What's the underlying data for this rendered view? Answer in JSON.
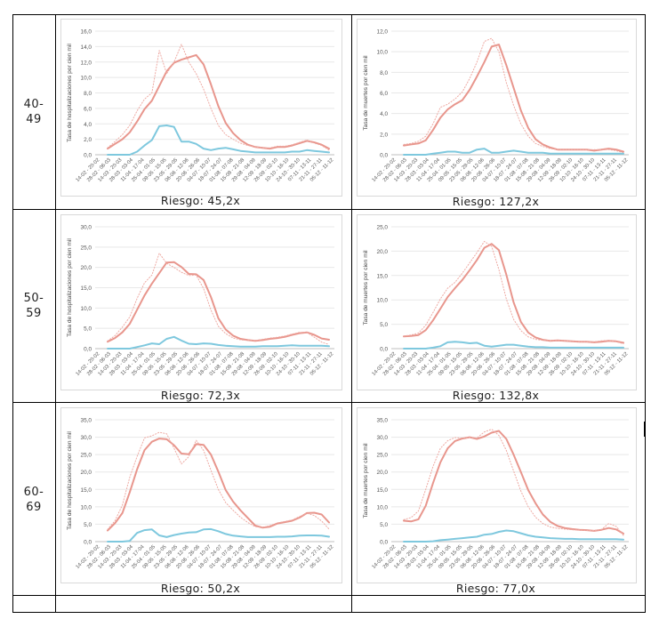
{
  "x_ticks": [
    "14-02 - 20-02",
    "28-02 - 06-03",
    "14-03 - 20-03",
    "28-03 - 03-04",
    "11-04 - 17-04",
    "25-04 - 01-05",
    "09-05 - 15-05",
    "23-05 - 29-05",
    "06-06 - 12-06",
    "20-06 - 26-06",
    "04-07 - 10-07",
    "18-07 - 24-07",
    "01-08 - 07-08",
    "15-08 - 21-08",
    "29-08 - 04-09",
    "12-09 - 18-09",
    "26-09 - 02-10",
    "10-10 - 16-10",
    "24-10 - 30-10",
    "07-11 - 13-11",
    "21-11 - 27-11",
    "05-12 - 11-12"
  ],
  "colors": {
    "main": "#e8968d",
    "dotted": "#eeaaa3",
    "blue": "#7ec8de",
    "grid": "#e8e8e8",
    "axis": "#bfbfbf"
  },
  "rows": [
    {
      "age": "40-\n49"
    },
    {
      "age": "50-\n59"
    },
    {
      "age": "60-\n69"
    }
  ],
  "chart_data": [
    {
      "type": "line",
      "ylabel": "Tasa de hospitalizaciones  por cien mil",
      "ylim": [
        0,
        16
      ],
      "y_ticks": [
        "0,0",
        "2,0",
        "4,0",
        "6,0",
        "8,0",
        "10,0",
        "12,0",
        "14,0",
        "16,0"
      ],
      "caption": "Riesgo: 45,2x",
      "series": [
        {
          "style": "solid",
          "color": "#e8968d",
          "values": [
            0.8,
            1.4,
            2.0,
            2.9,
            4.3,
            5.9,
            7.0,
            8.9,
            10.8,
            11.9,
            12.3,
            12.6,
            12.9,
            11.7,
            9.1,
            6.3,
            4.1,
            2.8,
            1.9,
            1.3,
            1.0,
            0.9,
            0.8,
            1.0,
            1.0,
            1.2,
            1.5,
            1.8,
            1.6,
            1.3,
            0.8
          ]
        },
        {
          "style": "dotted",
          "color": "#eeaaa3",
          "values": [
            0.9,
            1.7,
            2.6,
            3.8,
            5.7,
            7.2,
            8.0,
            13.5,
            10.5,
            12.0,
            14.3,
            12.0,
            10.5,
            8.5,
            6.0,
            3.8,
            2.6,
            2.0,
            1.5,
            1.2,
            1.0,
            0.9,
            0.9,
            1.1,
            1.1,
            1.3,
            1.6,
            1.9,
            1.5,
            1.2,
            0.6
          ]
        },
        {
          "style": "solid",
          "color": "#7ec8de",
          "values": [
            0,
            0,
            0,
            0,
            0.4,
            1.2,
            1.9,
            3.7,
            3.8,
            3.6,
            1.7,
            1.7,
            1.4,
            0.8,
            0.6,
            0.8,
            0.9,
            0.7,
            0.5,
            0.4,
            0.3,
            0.3,
            0.3,
            0.3,
            0.3,
            0.4,
            0.4,
            0.6,
            0.5,
            0.4,
            0.3
          ]
        }
      ]
    },
    {
      "type": "line",
      "ylabel": "Tasa de muertes  por cien mil",
      "ylim": [
        0,
        12
      ],
      "y_ticks": [
        "0,0",
        "2,0",
        "4,0",
        "6,0",
        "8,0",
        "10,0",
        "12,0"
      ],
      "caption": "Riesgo: 127,2x",
      "series": [
        {
          "style": "solid",
          "color": "#e8968d",
          "values": [
            0.9,
            1.0,
            1.1,
            1.4,
            2.4,
            3.6,
            4.4,
            4.9,
            5.3,
            6.3,
            7.6,
            9.0,
            10.5,
            10.7,
            8.7,
            6.5,
            4.3,
            2.6,
            1.5,
            1.0,
            0.7,
            0.5,
            0.5,
            0.5,
            0.5,
            0.5,
            0.4,
            0.5,
            0.6,
            0.5,
            0.3
          ]
        },
        {
          "style": "dotted",
          "color": "#eeaaa3",
          "values": [
            1.0,
            1.1,
            1.3,
            1.8,
            3.0,
            4.6,
            4.9,
            5.4,
            6.1,
            7.4,
            9.0,
            11.0,
            11.3,
            10.0,
            7.0,
            4.8,
            3.0,
            1.8,
            1.1,
            0.8,
            0.6,
            0.5,
            0.5,
            0.5,
            0.5,
            0.5,
            0.5,
            0.5,
            0.5,
            0.4,
            0.2
          ]
        },
        {
          "style": "solid",
          "color": "#7ec8de",
          "values": [
            0,
            0,
            0,
            0,
            0.1,
            0.2,
            0.3,
            0.3,
            0.2,
            0.2,
            0.5,
            0.6,
            0.2,
            0.2,
            0.3,
            0.4,
            0.3,
            0.2,
            0.2,
            0.2,
            0.1,
            0.1,
            0.1,
            0.1,
            0.1,
            0.1,
            0.1,
            0.1,
            0.1,
            0.1,
            0.1
          ]
        }
      ]
    },
    {
      "type": "line",
      "ylabel": "Tasa de hospitalizaciones  por cien mil",
      "ylim": [
        0,
        30
      ],
      "y_ticks": [
        "0,0",
        "5,0",
        "10,0",
        "15,0",
        "20,0",
        "25,0",
        "30,0"
      ],
      "caption": "Riesgo: 72,3x",
      "series": [
        {
          "style": "solid",
          "color": "#e8968d",
          "values": [
            1.7,
            2.6,
            4.0,
            6.1,
            9.6,
            13.1,
            16.0,
            18.6,
            21.2,
            21.3,
            20.1,
            18.4,
            18.3,
            16.9,
            12.7,
            7.5,
            4.7,
            3.2,
            2.4,
            2.1,
            1.9,
            2.1,
            2.4,
            2.6,
            2.9,
            3.4,
            3.8,
            4.0,
            3.4,
            2.5,
            2.2
          ]
        },
        {
          "style": "dotted",
          "color": "#eeaaa3",
          "values": [
            1.9,
            3.2,
            5.3,
            7.8,
            12.4,
            16.2,
            18.1,
            23.5,
            21.0,
            20.0,
            18.8,
            18.0,
            18.1,
            14.8,
            9.5,
            5.5,
            3.7,
            2.6,
            2.2,
            2.0,
            2.0,
            2.3,
            2.6,
            2.8,
            3.1,
            3.6,
            4.0,
            4.0,
            2.8,
            1.6,
            1.0
          ]
        },
        {
          "style": "solid",
          "color": "#7ec8de",
          "values": [
            0,
            0,
            0,
            0,
            0.4,
            0.8,
            1.3,
            1.1,
            2.4,
            2.9,
            2.0,
            1.2,
            1.1,
            1.3,
            1.2,
            0.9,
            0.7,
            0.6,
            0.5,
            0.5,
            0.5,
            0.6,
            0.6,
            0.6,
            0.7,
            0.8,
            0.7,
            0.7,
            0.7,
            0.7,
            0.6
          ]
        }
      ]
    },
    {
      "type": "line",
      "ylabel": "Tasa de muertes  por cien mil",
      "ylim": [
        0,
        25
      ],
      "y_ticks": [
        "0,0",
        "5,0",
        "10,0",
        "15,0",
        "20,0",
        "25,0"
      ],
      "caption": "Riesgo: 132,8x",
      "series": [
        {
          "style": "solid",
          "color": "#e8968d",
          "values": [
            2.5,
            2.6,
            2.8,
            3.8,
            5.8,
            8.2,
            10.6,
            12.4,
            14.1,
            16.1,
            18.2,
            20.7,
            21.5,
            20.2,
            15.2,
            9.5,
            5.5,
            3.3,
            2.3,
            1.8,
            1.6,
            1.7,
            1.6,
            1.5,
            1.4,
            1.4,
            1.3,
            1.4,
            1.6,
            1.5,
            1.2
          ]
        },
        {
          "style": "dotted",
          "color": "#eeaaa3",
          "values": [
            2.6,
            2.8,
            3.2,
            4.8,
            7.4,
            10.2,
            12.4,
            13.6,
            15.5,
            17.6,
            19.7,
            22.0,
            21.0,
            16.2,
            10.2,
            6.0,
            3.7,
            2.4,
            1.9,
            1.7,
            1.6,
            1.7,
            1.6,
            1.5,
            1.4,
            1.4,
            1.4,
            1.6,
            1.7,
            1.4,
            1.0
          ]
        },
        {
          "style": "solid",
          "color": "#7ec8de",
          "values": [
            0,
            0,
            0,
            0,
            0.2,
            0.5,
            1.3,
            1.4,
            1.3,
            1.1,
            1.2,
            0.6,
            0.4,
            0.6,
            0.8,
            0.8,
            0.6,
            0.4,
            0.3,
            0.3,
            0.2,
            0.2,
            0.2,
            0.2,
            0.2,
            0.2,
            0.2,
            0.2,
            0.2,
            0.2,
            0.2
          ]
        }
      ]
    },
    {
      "type": "line",
      "ylabel": "Tasa de hospitalizaciones  por cien mil",
      "ylim": [
        0,
        35
      ],
      "y_ticks": [
        "0,0",
        "5,0",
        "10,0",
        "15,0",
        "20,0",
        "25,0",
        "30,0",
        "35,0"
      ],
      "caption": "Riesgo: 50,2x",
      "series": [
        {
          "style": "solid",
          "color": "#e8968d",
          "values": [
            3.2,
            5.3,
            8.2,
            14.2,
            20.8,
            26.3,
            28.7,
            29.6,
            29.4,
            27.7,
            25.3,
            25.1,
            28.0,
            27.8,
            25.0,
            20.1,
            14.8,
            11.5,
            9.0,
            6.8,
            4.6,
            4.0,
            4.3,
            5.2,
            5.6,
            6.0,
            6.9,
            8.2,
            8.3,
            7.8,
            5.5
          ]
        },
        {
          "style": "dotted",
          "color": "#eeaaa3",
          "values": [
            3.5,
            6.0,
            10.5,
            18.5,
            24.5,
            29.8,
            30.4,
            31.4,
            31.0,
            26.8,
            22.3,
            24.4,
            29.1,
            26.2,
            20.5,
            15.0,
            11.2,
            9.0,
            7.0,
            5.5,
            4.3,
            4.1,
            4.6,
            5.4,
            5.8,
            6.2,
            7.2,
            8.1,
            7.5,
            5.9,
            3.6
          ]
        },
        {
          "style": "solid",
          "color": "#7ec8de",
          "values": [
            0,
            0,
            0,
            0.2,
            2.5,
            3.3,
            3.5,
            1.8,
            1.3,
            1.9,
            2.3,
            2.6,
            2.7,
            3.5,
            3.6,
            3.0,
            2.2,
            1.7,
            1.5,
            1.3,
            1.3,
            1.3,
            1.3,
            1.4,
            1.4,
            1.5,
            1.7,
            1.8,
            1.8,
            1.7,
            1.4
          ]
        }
      ]
    },
    {
      "type": "line",
      "ylabel": "Tasa de muertes  por cien mil",
      "ylim": [
        0,
        35
      ],
      "y_ticks": [
        "0,0",
        "5,0",
        "10,0",
        "15,0",
        "20,0",
        "25,0",
        "30,0",
        "35,0"
      ],
      "caption": "Riesgo: 77,0x",
      "series": [
        {
          "style": "solid",
          "color": "#e8968d",
          "values": [
            6.0,
            5.8,
            6.4,
            10.3,
            16.8,
            22.8,
            26.8,
            28.9,
            29.6,
            30.0,
            29.5,
            30.2,
            31.3,
            31.8,
            29.5,
            25.0,
            20.0,
            14.8,
            11.0,
            7.8,
            5.7,
            4.5,
            3.9,
            3.6,
            3.4,
            3.3,
            3.1,
            3.4,
            3.9,
            3.5,
            2.3
          ]
        },
        {
          "style": "dotted",
          "color": "#eeaaa3",
          "values": [
            6.3,
            6.9,
            8.8,
            15.0,
            21.6,
            26.8,
            29.0,
            29.9,
            29.7,
            29.9,
            29.8,
            31.5,
            32.3,
            30.5,
            26.2,
            20.3,
            14.5,
            10.0,
            7.0,
            5.2,
            4.2,
            3.8,
            3.6,
            3.4,
            3.3,
            3.2,
            3.2,
            3.5,
            5.2,
            4.4,
            1.8
          ]
        },
        {
          "style": "solid",
          "color": "#7ec8de",
          "values": [
            0,
            0,
            0,
            0,
            0.1,
            0.4,
            0.6,
            0.8,
            1.0,
            1.2,
            1.4,
            2.0,
            2.2,
            2.8,
            3.2,
            3.0,
            2.4,
            1.8,
            1.4,
            1.2,
            1.0,
            0.9,
            0.8,
            0.8,
            0.7,
            0.7,
            0.7,
            0.7,
            0.7,
            0.7,
            0.6
          ]
        }
      ]
    }
  ]
}
